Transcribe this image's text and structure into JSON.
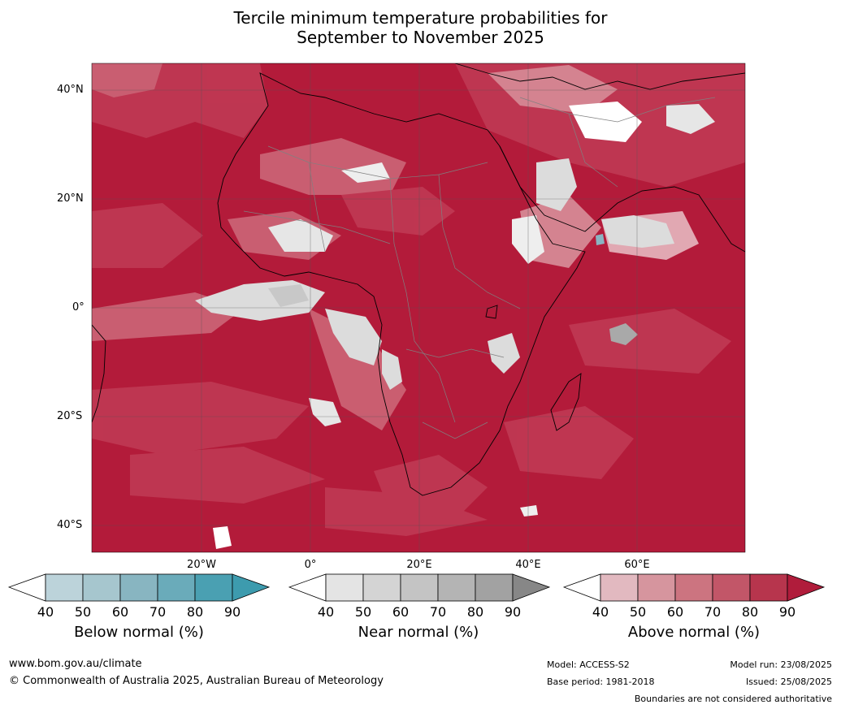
{
  "title_line1": "Tercile minimum temperature probabilities for",
  "title_line2": "September to November 2025",
  "lat_labels": [
    "40°N",
    "20°N",
    "0°",
    "20°S",
    "40°S"
  ],
  "lon_labels": [
    "20°W",
    "0°",
    "20°E",
    "40°E",
    "60°E"
  ],
  "colorbars": [
    {
      "title": "Below normal (%)",
      "ticks": [
        "40",
        "50",
        "60",
        "70",
        "80",
        "90"
      ],
      "colors": [
        "#bcd3da",
        "#a6c6ce",
        "#88b5c1",
        "#6aabba",
        "#4aa0b2",
        "#3d9bae"
      ]
    },
    {
      "title": "Near normal (%)",
      "ticks": [
        "40",
        "50",
        "60",
        "70",
        "80",
        "90"
      ],
      "colors": [
        "#e4e4e4",
        "#d4d4d4",
        "#c4c4c4",
        "#b4b4b4",
        "#a2a2a2",
        "#878787"
      ]
    },
    {
      "title": "Above normal (%)",
      "ticks": [
        "40",
        "50",
        "60",
        "70",
        "80",
        "90"
      ],
      "colors": [
        "#e2b9c0",
        "#d6959e",
        "#cc7480",
        "#c25668",
        "#b7354d",
        "#b01c3b"
      ]
    }
  ],
  "footer": {
    "website": "www.bom.gov.au/climate",
    "copyright": "© Commonwealth of Australia 2025, Australian Bureau of Meteorology",
    "model": "Model: ACCESS-S2",
    "base_period": "Base period: 1981-2018",
    "model_run": "Model run: 23/08/2025",
    "issued": "Issued: 25/08/2025",
    "disclaimer": "Boundaries are not considered authoritative"
  },
  "map_colors": {
    "above_90": "#b31b3a",
    "above_80": "#c03a54",
    "above_70": "#cc6677",
    "above_60": "#d88f9a",
    "above_50": "#e6b8bf",
    "near_normal": "#dcdcdc",
    "near_normal_dark": "#a9a9a9",
    "below_normal": "#8ab4c2",
    "white": "#ffffff",
    "coastline": "#000000",
    "borders": "#808080"
  }
}
